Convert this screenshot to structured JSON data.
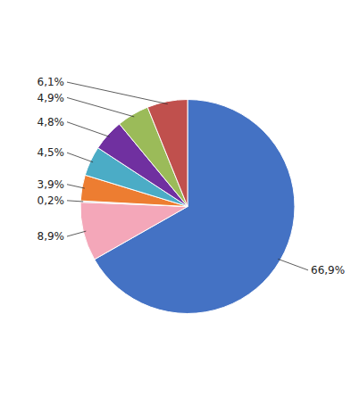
{
  "chart_data": {
    "type": "pie",
    "values": [
      66.9,
      8.9,
      0.2,
      3.9,
      4.5,
      4.8,
      4.9,
      6.1
    ],
    "value_labels": [
      "66,9%",
      "8,9%",
      "0,2%",
      "3,9%",
      "4,5%",
      "4,8%",
      "4,9%",
      "6,1%"
    ],
    "colors": [
      "#4472C4",
      "#F4A7B9",
      "#C0C0C0",
      "#ED7D31",
      "#4BACC6",
      "#7030A0",
      "#9BBB59",
      "#C0504D"
    ],
    "data_labels": true
  }
}
